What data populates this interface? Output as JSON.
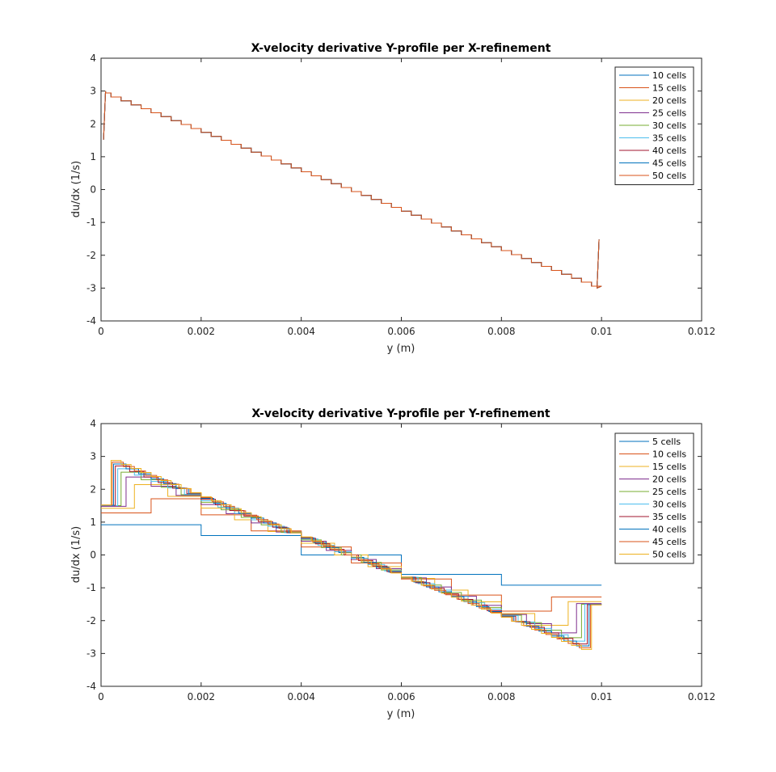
{
  "colors": [
    "#0072BD",
    "#D95319",
    "#EDB120",
    "#7E2F8E",
    "#77AC30",
    "#4DBEEE",
    "#A2142F",
    "#0072BD",
    "#D95319",
    "#EDB120"
  ],
  "chart_data": [
    {
      "type": "line",
      "title": "X-velocity derivative Y-profile per X-refinement",
      "xlabel": "y (m)",
      "ylabel": "du/dx (1/s)",
      "xlim": [
        0,
        0.012
      ],
      "ylim": [
        -4,
        4
      ],
      "xticks": [
        "0",
        "0.002",
        "0.004",
        "0.006",
        "0.008",
        "0.01",
        "0.012"
      ],
      "yticks": [
        "-4",
        "-3",
        "-2",
        "-1",
        "0",
        "1",
        "2",
        "3",
        "4"
      ],
      "legend_position": "top-right",
      "grid": false,
      "y_domain": [
        0,
        0.01
      ],
      "profile": {
        "edge_value": 1.52,
        "peak_value": 3.0,
        "grid_cells": 50
      },
      "series": [
        {
          "name": "10 cells"
        },
        {
          "name": "15 cells"
        },
        {
          "name": "20 cells"
        },
        {
          "name": "25 cells"
        },
        {
          "name": "30 cells"
        },
        {
          "name": "35 cells"
        },
        {
          "name": "40 cells"
        },
        {
          "name": "45 cells"
        },
        {
          "name": "50 cells"
        }
      ]
    },
    {
      "type": "line",
      "title": "X-velocity derivative Y-profile per Y-refinement",
      "xlabel": "y (m)",
      "ylabel": "du/dx (1/s)",
      "xlim": [
        0,
        0.012
      ],
      "ylim": [
        -4,
        4
      ],
      "xticks": [
        "0",
        "0.002",
        "0.004",
        "0.006",
        "0.008",
        "0.01",
        "0.012"
      ],
      "yticks": [
        "-4",
        "-3",
        "-2",
        "-1",
        "0",
        "1",
        "2",
        "3",
        "4"
      ],
      "legend_position": "top-right",
      "grid": false,
      "y_domain": [
        0,
        0.01
      ],
      "series": [
        {
          "name": "5 cells",
          "cells": 5,
          "edge_value": 0.92,
          "peak_value": 1.18
        },
        {
          "name": "10 cells",
          "cells": 10,
          "edge_value": 1.28,
          "peak_value": 2.2
        },
        {
          "name": "15 cells",
          "cells": 15,
          "edge_value": 1.42,
          "peak_value": 2.5
        },
        {
          "name": "20 cells",
          "cells": 20,
          "edge_value": 1.48,
          "peak_value": 2.65
        },
        {
          "name": "25 cells",
          "cells": 25,
          "edge_value": 1.5,
          "peak_value": 2.75
        },
        {
          "name": "30 cells",
          "cells": 30,
          "edge_value": 1.5,
          "peak_value": 2.82
        },
        {
          "name": "35 cells",
          "cells": 35,
          "edge_value": 1.51,
          "peak_value": 2.88
        },
        {
          "name": "40 cells",
          "cells": 40,
          "edge_value": 1.51,
          "peak_value": 2.92
        },
        {
          "name": "45 cells",
          "cells": 45,
          "edge_value": 1.52,
          "peak_value": 2.96
        },
        {
          "name": "50 cells",
          "cells": 50,
          "edge_value": 1.52,
          "peak_value": 3.0
        }
      ]
    }
  ]
}
